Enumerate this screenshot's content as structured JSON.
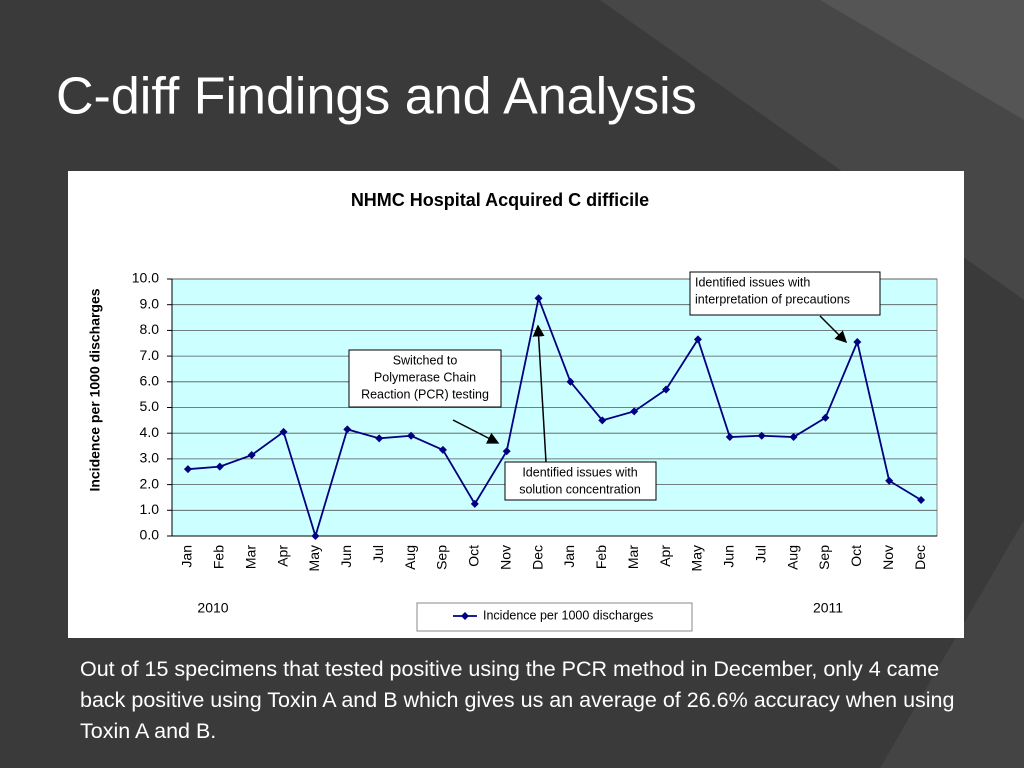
{
  "slide_title": "C-diff Findings and Analysis",
  "chart_data": {
    "type": "line",
    "title": "NHMC Hospital Acquired C difficile",
    "y_label": "Incidence per 1000 discharges",
    "categories": [
      "Jan",
      "Feb",
      "Mar",
      "Apr",
      "May",
      "Jun",
      "Jul",
      "Aug",
      "Sep",
      "Oct",
      "Nov",
      "Dec",
      "Jan",
      "Feb",
      "Mar",
      "Apr",
      "May",
      "Jun",
      "Jul",
      "Aug",
      "Sep",
      "Oct",
      "Nov",
      "Dec"
    ],
    "year_labels": [
      "2010",
      "2011"
    ],
    "series": [
      {
        "name": "Incidence per 1000 discharges",
        "color": "#000080",
        "values": [
          2.6,
          2.7,
          3.15,
          4.05,
          0,
          4.15,
          3.8,
          3.9,
          3.35,
          1.25,
          3.3,
          9.25,
          6.0,
          4.5,
          4.85,
          5.7,
          7.65,
          3.85,
          3.9,
          3.85,
          4.6,
          7.55,
          2.15,
          1.4
        ]
      }
    ],
    "ylim": [
      0,
      10
    ],
    "yticks": [
      {
        "value": 0,
        "label": "0.0"
      },
      {
        "value": 1,
        "label": "1.0"
      },
      {
        "value": 2,
        "label": "2.0"
      },
      {
        "value": 3,
        "label": "3.0"
      },
      {
        "value": 4,
        "label": "4.0"
      },
      {
        "value": 5,
        "label": "5.0"
      },
      {
        "value": 6,
        "label": "6.0"
      },
      {
        "value": 7,
        "label": "7.0"
      },
      {
        "value": 8,
        "label": "8.0"
      },
      {
        "value": 9,
        "label": "9.0"
      },
      {
        "value": 10,
        "label": "10.0"
      }
    ],
    "grid": true,
    "plot_background": "#ccffff",
    "annotations": [
      {
        "lines": [
          "Switched to",
          "Polymerase Chain",
          "Reaction (PCR) testing"
        ]
      },
      {
        "lines": [
          "Identified issues with",
          "solution concentration"
        ]
      },
      {
        "lines": [
          "Identified issues with",
          "interpretation of precautions"
        ]
      }
    ]
  },
  "body_text": "Out of 15 specimens that tested positive using the PCR method in December, only 4 came back positive using Toxin A and B which gives us an average of 26.6% accuracy when using Toxin A and B."
}
